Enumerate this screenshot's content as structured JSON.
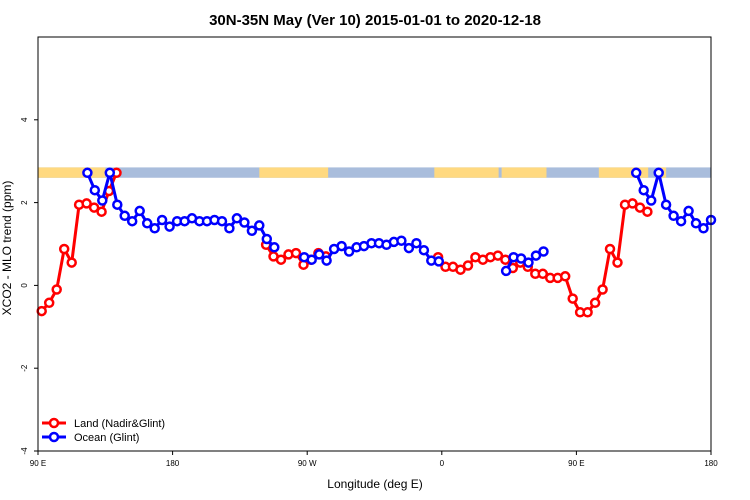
{
  "chart_data": {
    "type": "line",
    "title": "30N-35N May (Ver 10)   2015-01-01 to 2020-12-18",
    "xlabel": "Longitude (deg E)",
    "ylabel": "XCO2 - MLO trend (ppm)",
    "xlim": [
      90,
      540
    ],
    "ylim": [
      -4,
      6
    ],
    "xticks": [
      {
        "value": 90,
        "label": "90 E"
      },
      {
        "value": 180,
        "label": "180"
      },
      {
        "value": 270,
        "label": "90 W"
      },
      {
        "value": 360,
        "label": "0"
      },
      {
        "value": 450,
        "label": "90 E"
      },
      {
        "value": 540,
        "label": "180"
      }
    ],
    "yticks": [
      {
        "value": -4,
        "label": "-4"
      },
      {
        "value": -2,
        "label": "-2"
      },
      {
        "value": 0,
        "label": "0"
      },
      {
        "value": 2,
        "label": "2"
      },
      {
        "value": 4,
        "label": "4"
      }
    ],
    "legend_position": "bottom-left",
    "land_mask": {
      "y_range": [
        2.6,
        2.85
      ],
      "land_color": "#ffd980",
      "ocean_color": "#a9bddc",
      "land_intervals": [
        [
          90,
          135
        ],
        [
          238,
          284
        ],
        [
          355,
          398
        ],
        [
          400,
          430
        ],
        [
          465,
          498
        ],
        [
          505,
          510
        ]
      ]
    },
    "series": [
      {
        "name": "Land (Nadir&Glint)",
        "color": "#ff0000",
        "x": [
          92.5,
          97.5,
          102.5,
          107.5,
          112.5,
          117.5,
          122.5,
          127.5,
          132.5,
          137.5,
          142.5,
          null,
          242.5,
          247.5,
          252.5,
          257.5,
          262.5,
          267.5,
          272.5,
          277.5,
          282.5,
          null,
          357.5,
          362.5,
          367.5,
          372.5,
          377.5,
          382.5,
          387.5,
          392.5,
          397.5,
          402.5,
          407.5,
          412.5,
          417.5,
          422.5,
          427.5,
          432.5,
          437.5,
          442.5,
          447.5,
          452.5,
          457.5,
          462.5,
          467.5,
          472.5,
          477.5,
          482.5,
          487.5,
          492.5,
          497.5
        ],
        "y": [
          -0.62,
          -0.42,
          -0.1,
          0.88,
          0.55,
          1.95,
          1.98,
          1.88,
          1.78,
          2.28,
          2.72,
          null,
          0.98,
          0.7,
          0.62,
          0.75,
          0.78,
          0.5,
          0.62,
          0.78,
          0.7,
          null,
          0.68,
          0.45,
          0.45,
          0.38,
          0.48,
          0.68,
          0.62,
          0.68,
          0.72,
          0.62,
          0.42,
          0.55,
          0.45,
          0.28,
          0.28,
          0.18,
          0.18,
          0.22,
          -0.32,
          -0.65,
          -0.65,
          -0.42,
          -0.1,
          0.88,
          0.55,
          1.95,
          1.98,
          1.88,
          1.78
        ]
      },
      {
        "name": "Ocean (Glint)",
        "color": "#0000ff",
        "x": [
          123,
          128,
          133,
          138,
          143,
          148,
          153,
          158,
          163,
          168,
          173,
          178,
          183,
          188,
          193,
          198,
          203,
          208,
          213,
          218,
          223,
          228,
          233,
          238,
          243,
          248,
          null,
          268,
          273,
          278,
          283,
          288,
          293,
          298,
          303,
          308,
          313,
          318,
          323,
          328,
          333,
          338,
          343,
          348,
          353,
          358,
          null,
          403,
          408,
          413,
          418,
          423,
          428,
          null,
          490,
          495,
          500,
          505,
          510,
          515,
          520,
          525,
          530,
          535,
          540
        ],
        "y": [
          2.72,
          2.3,
          2.05,
          2.72,
          1.95,
          1.68,
          1.55,
          1.8,
          1.5,
          1.38,
          1.58,
          1.42,
          1.55,
          1.55,
          1.62,
          1.55,
          1.55,
          1.58,
          1.55,
          1.38,
          1.62,
          1.52,
          1.32,
          1.45,
          1.12,
          0.92,
          null,
          0.68,
          0.62,
          0.75,
          0.6,
          0.88,
          0.95,
          0.82,
          0.92,
          0.95,
          1.02,
          1.02,
          0.98,
          1.05,
          1.08,
          0.9,
          1.02,
          0.85,
          0.6,
          0.58,
          null,
          0.35,
          0.68,
          0.65,
          0.55,
          0.72,
          0.82,
          null,
          2.72,
          2.3,
          2.05,
          2.72,
          1.95,
          1.68,
          1.55,
          1.8,
          1.5,
          1.38,
          1.58
        ]
      }
    ]
  }
}
